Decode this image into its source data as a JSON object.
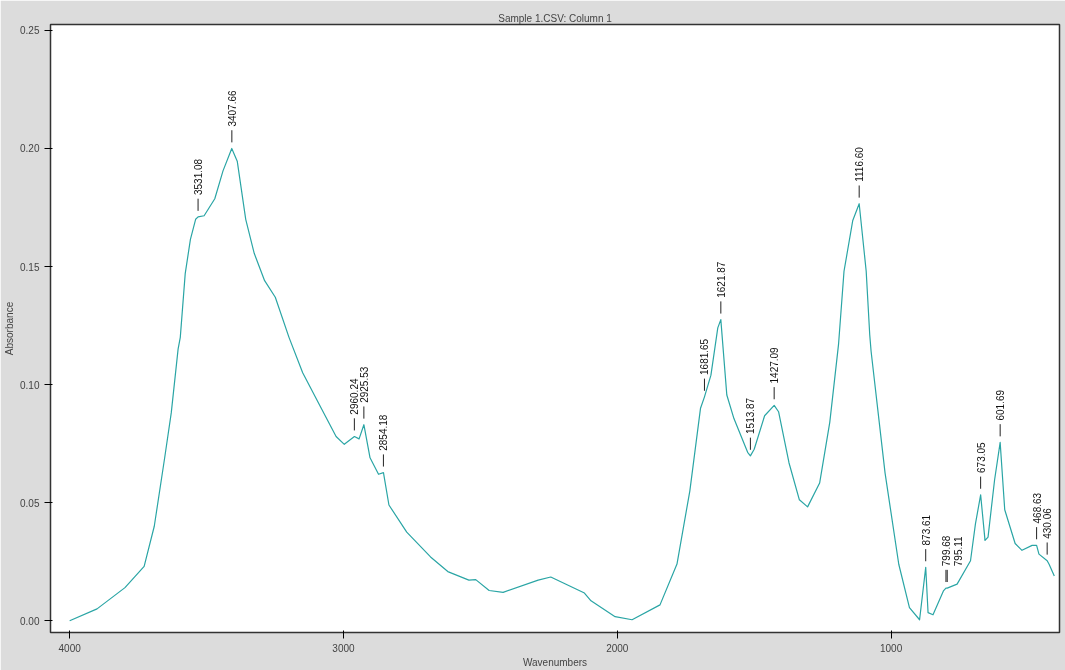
{
  "chart_data": {
    "type": "line",
    "title": "Sample 1.CSV: Column 1",
    "xlabel": "Wavenumbers",
    "ylabel": "Absorbance",
    "xlim": [
      4070,
      385
    ],
    "xticks": [
      4000,
      3000,
      2000,
      1000
    ],
    "ylim": [
      -0.005,
      0.2525
    ],
    "yticks": [
      {
        "value": 0,
        "label": "0.00"
      },
      {
        "value": 0.05,
        "label": "0.05"
      },
      {
        "value": 0.1,
        "label": "0.10"
      },
      {
        "value": 0.15,
        "label": "0.15"
      },
      {
        "value": 0.2,
        "label": "0.20"
      },
      {
        "value": 0.25,
        "label": "0.25"
      }
    ],
    "grid": false,
    "marker": "none",
    "line_style": "solid",
    "series": [
      {
        "color": "#2aa5a5",
        "x": [
          4000,
          3900,
          3798,
          3728,
          3691,
          3653,
          3629,
          3604,
          3596,
          3578,
          3559,
          3540,
          3531,
          3509,
          3470,
          3440,
          3408,
          3388,
          3357,
          3326,
          3288,
          3249,
          3199,
          3149,
          3086,
          3027,
          2997,
          2960,
          2943,
          2925.5,
          2903,
          2872,
          2854,
          2834,
          2769,
          2682,
          2619,
          2542,
          2517,
          2468,
          2417,
          2289,
          2243,
          2120,
          2096,
          2008,
          1946,
          1844,
          1782,
          1735,
          1696,
          1681.6,
          1658,
          1633,
          1621.9,
          1600,
          1574,
          1524,
          1513.9,
          1500,
          1462,
          1427,
          1411,
          1373,
          1335,
          1305,
          1261,
          1224,
          1192,
          1172,
          1140,
          1116.6,
          1091,
          1078,
          1073,
          1022,
          972,
          933,
          896,
          873.6,
          865,
          847,
          809,
          799.7,
          795.1,
          759,
          710,
          692,
          673,
          657,
          646,
          622,
          601.7,
          585,
          547,
          522,
          485,
          468.6,
          460,
          430,
          423,
          404
        ],
        "values": [
          0.0,
          0.005,
          0.014,
          0.023,
          0.04,
          0.069,
          0.088,
          0.115,
          0.12,
          0.147,
          0.1615,
          0.17,
          0.171,
          0.1715,
          0.1787,
          0.1905,
          0.2,
          0.1946,
          0.17,
          0.1556,
          0.144,
          0.137,
          0.12,
          0.105,
          0.091,
          0.078,
          0.0747,
          0.078,
          0.077,
          0.083,
          0.069,
          0.062,
          0.0627,
          0.049,
          0.0375,
          0.027,
          0.0208,
          0.0172,
          0.0174,
          0.0128,
          0.012,
          0.0172,
          0.0185,
          0.0117,
          0.0084,
          0.0017,
          0.0004,
          0.0067,
          0.024,
          0.055,
          0.09,
          0.0948,
          0.104,
          0.124,
          0.1275,
          0.0956,
          0.0856,
          0.0713,
          0.0698,
          0.0726,
          0.0868,
          0.0912,
          0.0885,
          0.0669,
          0.0512,
          0.0482,
          0.0583,
          0.084,
          0.117,
          0.148,
          0.1695,
          0.1766,
          0.148,
          0.121,
          0.114,
          0.0625,
          0.0239,
          0.0055,
          0.0004,
          0.0226,
          0.0034,
          0.0025,
          0.0126,
          0.0138,
          0.0138,
          0.0155,
          0.0254,
          0.041,
          0.0533,
          0.034,
          0.0354,
          0.0597,
          0.0755,
          0.047,
          0.0327,
          0.0298,
          0.0319,
          0.0319,
          0.0282,
          0.0254,
          0.0239,
          0.0189
        ]
      }
    ],
    "annotations": [
      {
        "text": "3531.08",
        "x": 3531.08,
        "y": 0.171
      },
      {
        "text": "3407.66",
        "x": 3407.66,
        "y": 0.2
      },
      {
        "text": "2960.24",
        "x": 2960.24,
        "y": 0.078
      },
      {
        "text": "2925.53",
        "x": 2925.53,
        "y": 0.083
      },
      {
        "text": "2854.18",
        "x": 2854.18,
        "y": 0.0627
      },
      {
        "text": "1681.65",
        "x": 1681.65,
        "y": 0.0948
      },
      {
        "text": "1621.87",
        "x": 1621.87,
        "y": 0.1275
      },
      {
        "text": "1513.87",
        "x": 1513.87,
        "y": 0.0698
      },
      {
        "text": "1427.09",
        "x": 1427.09,
        "y": 0.0912
      },
      {
        "text": "1116.60",
        "x": 1116.6,
        "y": 0.1766
      },
      {
        "text": "873.61",
        "x": 873.61,
        "y": 0.0226
      },
      {
        "text": "799.68",
        "x": 799.68,
        "y": 0.0138
      },
      {
        "text": "795.11",
        "x": 795.11,
        "y": 0.0138
      },
      {
        "text": "673.05",
        "x": 673.05,
        "y": 0.0533
      },
      {
        "text": "601.69",
        "x": 601.69,
        "y": 0.0755
      },
      {
        "text": "468.63",
        "x": 468.63,
        "y": 0.0319
      },
      {
        "text": "430.06",
        "x": 430.06,
        "y": 0.0254
      }
    ]
  }
}
